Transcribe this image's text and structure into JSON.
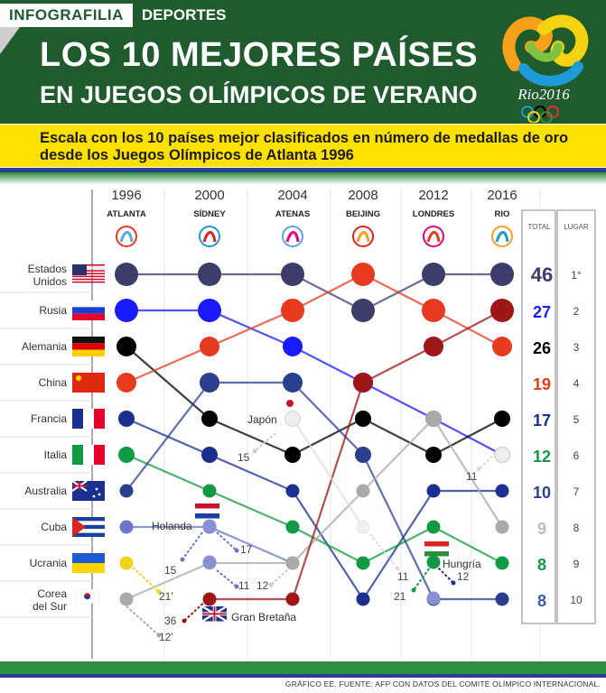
{
  "brand": {
    "name": "INFOGRAFILIA",
    "section": "DEPORTES"
  },
  "header": {
    "title_line1": "LOS 10 MEJORES PAÍSES",
    "title_line2": "EN JUEGOS OLÍMPICOS DE VERANO",
    "logo_text": "Rio2016",
    "logo_icon": "rio2016-logo-icon"
  },
  "subtitle": "Escala con los 10 países mejor clasificados en número de medallas de oro desde los Juegos Olímpicos de Atlanta 1996",
  "source": "GRÁFICO EE. FUENTE: AFP CON DATOS DEL COMITÉ OLÍMPICO INTERNACIONAL.",
  "chart_data": {
    "type": "line",
    "title": "LOS 10 MEJORES PAÍSES EN JUEGOS OLÍMPICOS DE VERANO",
    "x": [
      "1996",
      "2000",
      "2004",
      "2008",
      "2012",
      "2016"
    ],
    "cities": [
      "ATLANTA",
      "SÍDNEY",
      "ATENAS",
      "BEIJING",
      "LONDRES",
      "RIO"
    ],
    "city_icons": [
      "atlanta-emblem-icon",
      "sydney-emblem-icon",
      "athens-emblem-icon",
      "beijing-emblem-icon",
      "london-emblem-icon",
      "rio-emblem-icon"
    ],
    "y_axis": "rank (1 = top), reversed",
    "ylim": [
      1,
      10
    ],
    "total_header": "TOTAL",
    "place_header": "LUGAR",
    "series": [
      {
        "name": "Estados Unidos",
        "color": "#3d3d6b",
        "ranks": [
          1,
          1,
          1,
          2,
          1,
          1
        ],
        "total": "46",
        "place": "1°",
        "flag": "usa-flag-icon"
      },
      {
        "name": "Rusia",
        "color": "#1a1aff",
        "ranks": [
          2,
          2,
          3,
          4,
          5,
          6
        ],
        "total": "27",
        "place": "2",
        "flag": "russia-flag-icon"
      },
      {
        "name": "Alemania",
        "color": "#000000",
        "ranks": [
          3,
          5,
          6,
          5,
          6,
          5
        ],
        "total": "26",
        "place": "3",
        "flag": "germany-flag-icon"
      },
      {
        "name": "China",
        "color": "#e83a1e",
        "ranks": [
          4,
          3,
          2,
          1,
          2,
          3
        ],
        "total": "19",
        "place": "4",
        "flag": "china-flag-icon"
      },
      {
        "name": "Francia",
        "color": "#1a2f8f",
        "ranks": [
          5,
          6,
          7,
          10,
          7,
          7
        ],
        "total": "17",
        "place": "5",
        "flag": "france-flag-icon"
      },
      {
        "name": "Italia",
        "color": "#119944",
        "ranks": [
          6,
          7,
          8,
          9,
          8,
          9
        ],
        "total": "12",
        "place": "6",
        "flag": "italy-flag-icon"
      },
      {
        "name": "Australia",
        "color": "#2a3f8f",
        "ranks": [
          7,
          4,
          4,
          6,
          10,
          10
        ],
        "total": "10",
        "place": "7",
        "flag": "australia-flag-icon"
      },
      {
        "name": "Cuba",
        "color": "#6b77c9",
        "ranks": [
          8,
          8,
          9,
          null,
          null,
          null
        ],
        "total": "9",
        "place": "8",
        "flag": "cuba-flag-icon"
      },
      {
        "name": "Ucrania",
        "color": "#f2d21b",
        "ranks": [
          9,
          null,
          null,
          null,
          null,
          null
        ],
        "total": "8",
        "place": "9",
        "flag": "ukraine-flag-icon"
      },
      {
        "name": "Corea del Sur",
        "color": "#aaaaaa",
        "ranks": [
          10,
          9,
          9,
          7,
          5,
          8
        ],
        "total": "8",
        "place": "10",
        "flag": "south-korea-flag-icon"
      },
      {
        "name": "Gran Bretaña",
        "color": "#9e1616",
        "ranks": [
          null,
          10,
          10,
          4,
          3,
          2
        ],
        "flag": "uk-flag-icon"
      },
      {
        "name": "Japón",
        "color": "#dddddd",
        "ranks": [
          null,
          null,
          5,
          8,
          11,
          6
        ],
        "flag": "japan-flag-icon"
      },
      {
        "name": "Holanda",
        "color": "#6b77c9",
        "flag": "netherlands-flag-icon"
      },
      {
        "name": "Hungría",
        "color": "#119944",
        "flag": "hungary-flag-icon"
      }
    ],
    "outside_labels": [
      "15",
      "17",
      "15",
      "11",
      "12",
      "21'",
      "36",
      "12'",
      "11",
      "11",
      "21",
      "12"
    ]
  },
  "colors": {
    "header_green": "#1f5b2c",
    "subtitle_yellow": "#ffe100",
    "accent_blue": "#2a3f8f",
    "accent_green": "#2e8f3e"
  }
}
